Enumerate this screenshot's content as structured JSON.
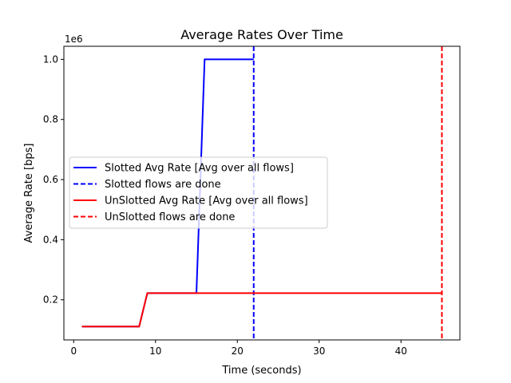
{
  "chart_data": {
    "type": "line",
    "title": "Average Rates Over Time",
    "xlabel": "Time (seconds)",
    "ylabel": "Average Rate [bps]",
    "y_offset_label": "1e6",
    "xlim": [
      -1.2,
      47.2
    ],
    "ylim": [
      0.0665,
      1.0435
    ],
    "y_scale_factor": 1000000,
    "x_ticks": [
      0,
      10,
      20,
      30,
      40
    ],
    "y_ticks": [
      0.2,
      0.4,
      0.6,
      0.8,
      1.0
    ],
    "y_tick_labels": [
      "0.2",
      "0.4",
      "0.6",
      "0.8",
      "1.0"
    ],
    "grid": false,
    "legend_position": "center-left",
    "series": [
      {
        "name": "Slotted Avg Rate [Avg over all flows]",
        "color": "#0000ff",
        "style": "solid",
        "x": [
          1,
          8,
          9,
          15,
          16,
          22
        ],
        "y": [
          0.111,
          0.111,
          0.222,
          0.222,
          1.0,
          1.0
        ]
      },
      {
        "name": "Slotted flows are done",
        "color": "#0000ff",
        "style": "dashed",
        "vline_x": 22
      },
      {
        "name": "UnSlotted Avg Rate [Avg over all flows]",
        "color": "#ff0000",
        "style": "solid",
        "x": [
          1,
          8,
          9,
          45
        ],
        "y": [
          0.111,
          0.111,
          0.222,
          0.222
        ]
      },
      {
        "name": "UnSlotted flows are done",
        "color": "#ff0000",
        "style": "dashed",
        "vline_x": 45
      }
    ]
  }
}
